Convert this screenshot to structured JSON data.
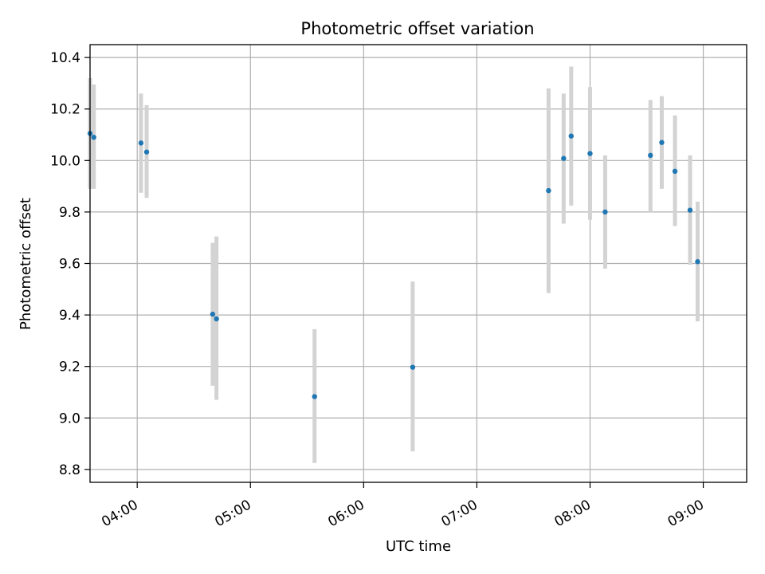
{
  "chart_data": {
    "type": "scatter",
    "title": "Photometric offset variation",
    "xlabel": "UTC time",
    "ylabel": "Photometric offset",
    "x_is_time": true,
    "xlim": [
      "03:35",
      "09:23"
    ],
    "ylim": [
      8.75,
      10.45
    ],
    "xticks": [
      "04:00",
      "05:00",
      "06:00",
      "07:00",
      "08:00",
      "09:00"
    ],
    "yticks": [
      8.8,
      9.0,
      9.2,
      9.4,
      9.6,
      9.8,
      10.0,
      10.2,
      10.4
    ],
    "ytick_labels": [
      "8.8",
      "9.0",
      "9.2",
      "9.4",
      "9.6",
      "9.8",
      "10.0",
      "10.2",
      "10.4"
    ],
    "grid": true,
    "point_color": "#1f77b4",
    "errorbar_color": "#d3d3d3",
    "points": [
      {
        "x": "03:35",
        "y": 10.105,
        "ymin": 9.89,
        "ymax": 10.32
      },
      {
        "x": "03:37",
        "y": 10.09,
        "ymin": 9.89,
        "ymax": 10.295
      },
      {
        "x": "04:02",
        "y": 10.068,
        "ymin": 9.875,
        "ymax": 10.26
      },
      {
        "x": "04:05",
        "y": 10.033,
        "ymin": 9.855,
        "ymax": 10.215
      },
      {
        "x": "04:40",
        "y": 9.403,
        "ymin": 9.125,
        "ymax": 9.68
      },
      {
        "x": "04:42",
        "y": 9.385,
        "ymin": 9.07,
        "ymax": 9.705
      },
      {
        "x": "05:34",
        "y": 9.083,
        "ymin": 8.825,
        "ymax": 9.345
      },
      {
        "x": "06:26",
        "y": 9.197,
        "ymin": 8.87,
        "ymax": 9.53
      },
      {
        "x": "07:38",
        "y": 9.883,
        "ymin": 9.485,
        "ymax": 10.28
      },
      {
        "x": "07:46",
        "y": 10.008,
        "ymin": 9.755,
        "ymax": 10.26
      },
      {
        "x": "07:50",
        "y": 10.095,
        "ymin": 9.825,
        "ymax": 10.365
      },
      {
        "x": "08:00",
        "y": 10.027,
        "ymin": 9.77,
        "ymax": 10.285
      },
      {
        "x": "08:08",
        "y": 9.8,
        "ymin": 9.58,
        "ymax": 10.02
      },
      {
        "x": "08:32",
        "y": 10.02,
        "ymin": 9.8,
        "ymax": 10.235
      },
      {
        "x": "08:38",
        "y": 10.07,
        "ymin": 9.89,
        "ymax": 10.25
      },
      {
        "x": "08:45",
        "y": 9.958,
        "ymin": 9.745,
        "ymax": 10.175
      },
      {
        "x": "08:53",
        "y": 9.807,
        "ymin": 9.595,
        "ymax": 10.02
      },
      {
        "x": "08:57",
        "y": 9.607,
        "ymin": 9.375,
        "ymax": 9.84
      }
    ]
  }
}
